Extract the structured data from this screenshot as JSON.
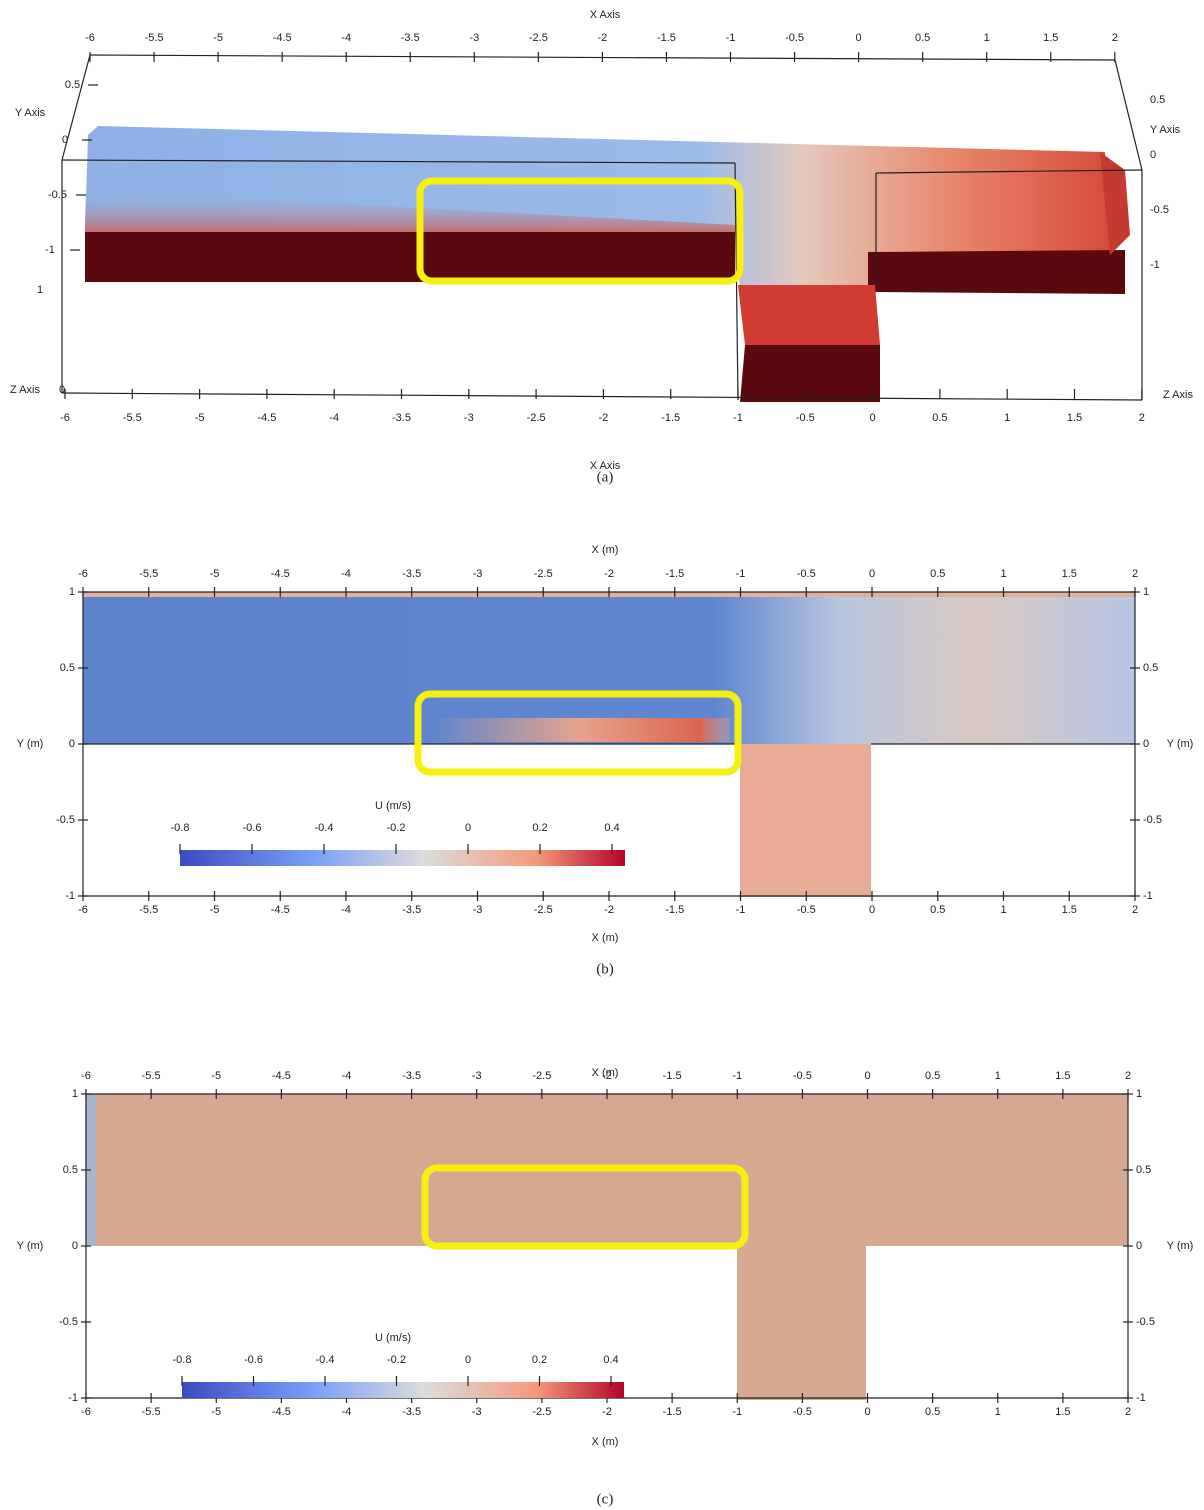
{
  "panels": [
    {
      "caption": "(a)",
      "x_axis_label": "X Axis",
      "y_axis_label": "Y Axis",
      "z_axis_label": "Z Axis",
      "xticks": [
        -6,
        -5.5,
        -5,
        -4.5,
        -4,
        -3.5,
        -3,
        -2.5,
        -2,
        -1.5,
        -1,
        -0.5,
        0,
        0.5,
        1,
        1.5,
        2
      ],
      "yticks": [
        0.5,
        0,
        -0.5,
        -1
      ],
      "zticks": [
        1,
        0
      ]
    },
    {
      "caption": "(b)",
      "x_axis_label": "X (m)",
      "y_axis_label": "Y (m)",
      "xticks": [
        -6,
        -5.5,
        -5,
        -4.5,
        -4,
        -3.5,
        -3,
        -2.5,
        -2,
        -1.5,
        -1,
        -0.5,
        0,
        0.5,
        1,
        1.5,
        2
      ],
      "yticks": [
        1,
        0.5,
        0,
        -0.5,
        -1
      ],
      "colorbar": {
        "title": "U (m/s)",
        "ticks": [
          -0.8,
          -0.6,
          -0.4,
          -0.2,
          0,
          0.2,
          0.4
        ]
      }
    },
    {
      "caption": "(c)",
      "x_axis_label": "X (m)",
      "y_axis_label": "Y (m)",
      "xticks": [
        -6,
        -5.5,
        -5,
        -4.5,
        -4,
        -3.5,
        -3,
        -2.5,
        -2,
        -1.5,
        -1,
        -0.5,
        0,
        0.5,
        1,
        1.5,
        2
      ],
      "yticks": [
        1,
        0.5,
        0,
        -0.5,
        -1
      ],
      "colorbar": {
        "title": "U (m/s)",
        "ticks": [
          -0.8,
          -0.6,
          -0.4,
          -0.2,
          0,
          0.2,
          0.4
        ]
      }
    }
  ]
}
